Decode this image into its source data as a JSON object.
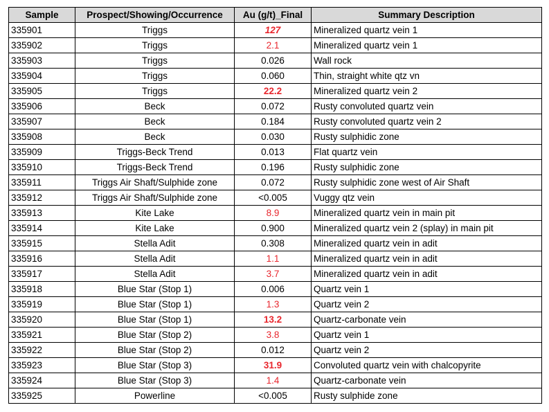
{
  "table": {
    "header": [
      "Sample",
      "Prospect/Showing/Occurrence",
      "Au (g/t)_Final",
      "Summary Description"
    ],
    "rows": [
      [
        "335901",
        "Triggs",
        "127",
        "Mineralized quartz vein 1"
      ],
      [
        "335902",
        "Triggs",
        "2.1",
        "Mineralized quartz vein 1"
      ],
      [
        "335903",
        "Triggs",
        "0.026",
        "Wall rock"
      ],
      [
        "335904",
        "Triggs",
        "0.060",
        "Thin, straight white qtz vn"
      ],
      [
        "335905",
        "Triggs",
        "22.2",
        "Mineralized quartz vein 2"
      ],
      [
        "335906",
        "Beck",
        "0.072",
        "Rusty convoluted quartz vein"
      ],
      [
        "335907",
        "Beck",
        "0.184",
        "Rusty convoluted quartz vein 2"
      ],
      [
        "335908",
        "Beck",
        "0.030",
        "Rusty sulphidic zone"
      ],
      [
        "335909",
        "Triggs-Beck Trend",
        "0.013",
        "Flat quartz vein"
      ],
      [
        "335910",
        "Triggs-Beck Trend",
        "0.196",
        "Rusty sulphidic zone"
      ],
      [
        "335911",
        "Triggs Air Shaft/Sulphide zone",
        "0.072",
        "Rusty sulphidic zone west of Air Shaft"
      ],
      [
        "335912",
        "Triggs Air Shaft/Sulphide zone",
        "<0.005",
        "Vuggy qtz vein"
      ],
      [
        "335913",
        "Kite Lake",
        "8.9",
        "Mineralized quartz vein in main pit"
      ],
      [
        "335914",
        "Kite Lake",
        "0.900",
        "Mineralized quartz vein 2 (splay) in main pit"
      ],
      [
        "335915",
        "Stella Adit",
        "0.308",
        "Mineralized quartz vein in adit"
      ],
      [
        "335916",
        "Stella Adit",
        "1.1",
        "Mineralized quartz vein in adit"
      ],
      [
        "335917",
        "Stella Adit",
        "3.7",
        "Mineralized quartz vein in adit"
      ],
      [
        "335918",
        "Blue Star (Stop 1)",
        "0.006",
        "Quartz vein 1"
      ],
      [
        "335919",
        "Blue Star (Stop 1)",
        "1.3",
        "Quartz vein 2"
      ],
      [
        "335920",
        "Blue Star (Stop 1)",
        "13.2",
        "Quartz-carbonate vein"
      ],
      [
        "335921",
        "Blue Star (Stop 2)",
        "3.8",
        "Quartz vein 1"
      ],
      [
        "335922",
        "Blue Star (Stop 2)",
        "0.012",
        "Quartz vein 2"
      ],
      [
        "335923",
        "Blue Star (Stop 3)",
        "31.9",
        "Convoluted quartz vein with chalcopyrite"
      ],
      [
        "335924",
        "Blue Star (Stop 3)",
        "1.4",
        "Quartz-carbonate vein"
      ],
      [
        "335925",
        "Powerline",
        "<0.005",
        "Rusty sulphide zone"
      ]
    ],
    "au_style": [
      "red-bold-italic",
      "red",
      "normal",
      "normal",
      "red-bold",
      "normal",
      "normal",
      "normal",
      "normal",
      "normal",
      "normal",
      "normal",
      "red",
      "normal",
      "normal",
      "red",
      "red",
      "normal",
      "red",
      "red-bold",
      "red",
      "normal",
      "red-bold",
      "red",
      "normal"
    ],
    "highlight_color": "#e8262d"
  }
}
